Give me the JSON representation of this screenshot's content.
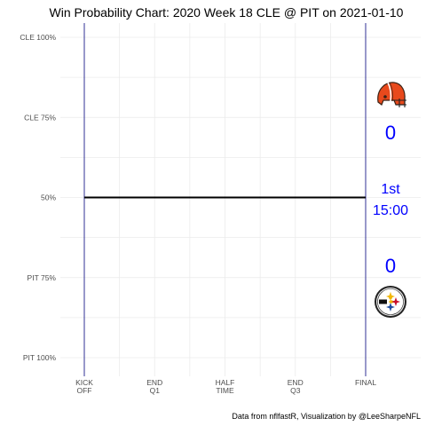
{
  "chart_data": {
    "type": "line",
    "title": "Win Probability Chart: 2020 Week 18 CLE @ PIT on 2021-01-10",
    "xlabel": "",
    "ylabel": "",
    "x_ticks": [
      {
        "value": 0,
        "lines": [
          "KICK",
          "OFF"
        ]
      },
      {
        "value": 15,
        "lines": [
          "END",
          "Q1"
        ]
      },
      {
        "value": 30,
        "lines": [
          "HALF",
          "TIME"
        ]
      },
      {
        "value": 45,
        "lines": [
          "END",
          "Q3"
        ]
      },
      {
        "value": 60,
        "lines": [
          "FINAL"
        ]
      }
    ],
    "y_ticks": [
      {
        "value": 1.0,
        "label": "CLE 100%"
      },
      {
        "value": 0.75,
        "label": "CLE 75%"
      },
      {
        "value": 0.5,
        "label": "50%"
      },
      {
        "value": 0.25,
        "label": "PIT 75%"
      },
      {
        "value": 0.0,
        "label": "PIT 100%"
      }
    ],
    "xlim": [
      0,
      60
    ],
    "ylim": [
      0,
      1
    ],
    "grid": true,
    "series": [
      {
        "x": [
          0,
          60
        ],
        "y": [
          0.5,
          0.5
        ],
        "color": "#000000"
      }
    ],
    "boundary_lines": {
      "x": [
        0,
        60
      ],
      "color": "#000080"
    },
    "caption": "Data from nflfastR, Visualization by @LeeSharpeNFL"
  },
  "scoreboard": {
    "away_team": "CLE",
    "home_team": "PIT",
    "away_score": "0",
    "home_score": "0",
    "quarter": "1st",
    "clock": "15:00",
    "text_color": "#0000ff",
    "away_logo_icon": "cleveland-browns-helmet-icon",
    "home_logo_icon": "pittsburgh-steelers-logo-icon"
  }
}
